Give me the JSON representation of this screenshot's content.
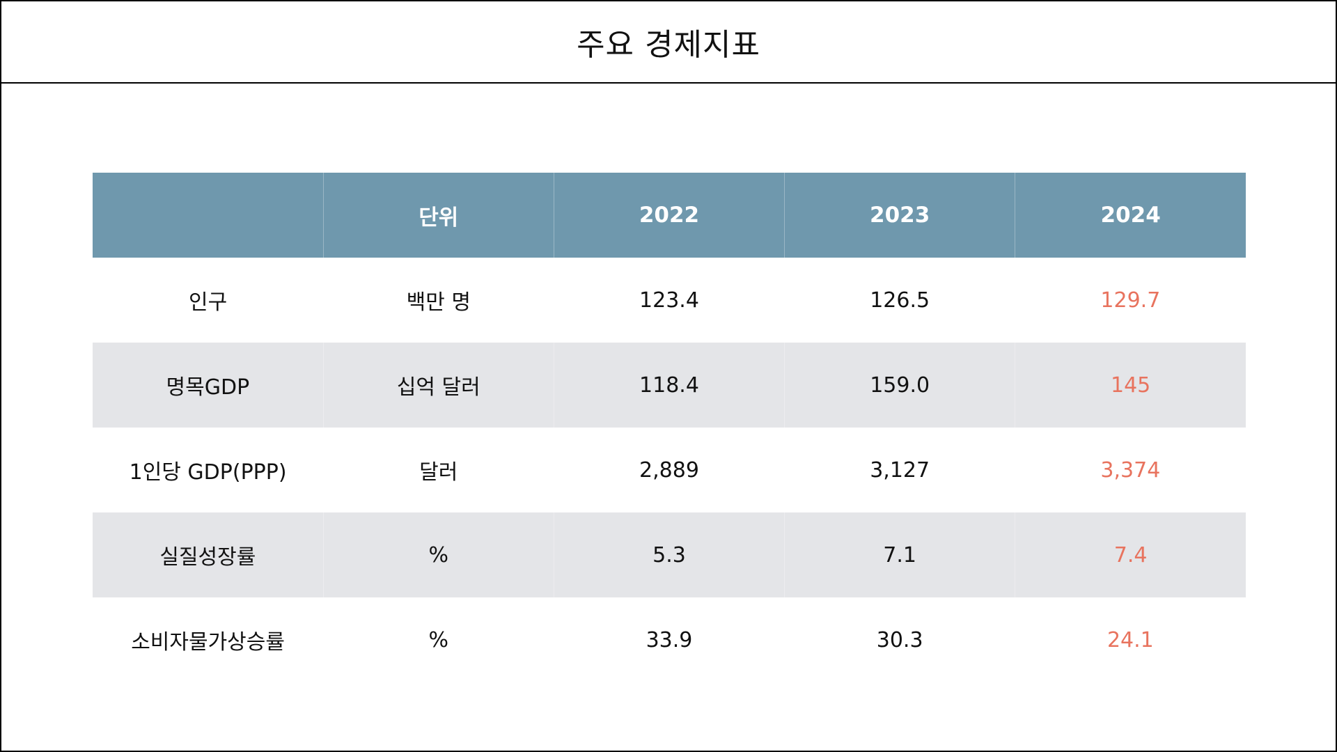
{
  "title": "주요 경제지표",
  "colors": {
    "header_bg": "#6f98ad",
    "header_text": "#ffffff",
    "shaded_row": "#e4e5e8",
    "highlight": "#e8735e",
    "border": "#000000"
  },
  "table": {
    "headers": [
      "",
      "단위",
      "2022",
      "2023",
      "2024"
    ],
    "rows": [
      [
        "인구",
        "백만 명",
        "123.4",
        "126.5",
        "129.7"
      ],
      [
        "명목GDP",
        "십억 달러",
        "118.4",
        "159.0",
        "145"
      ],
      [
        "1인당 GDP(PPP)",
        "달러",
        "2,889",
        "3,127",
        "3,374"
      ],
      [
        "실질성장률",
        "%",
        "5.3",
        "7.1",
        "7.4"
      ],
      [
        "소비자물가상승률",
        "%",
        "33.9",
        "30.3",
        "24.1"
      ]
    ]
  }
}
